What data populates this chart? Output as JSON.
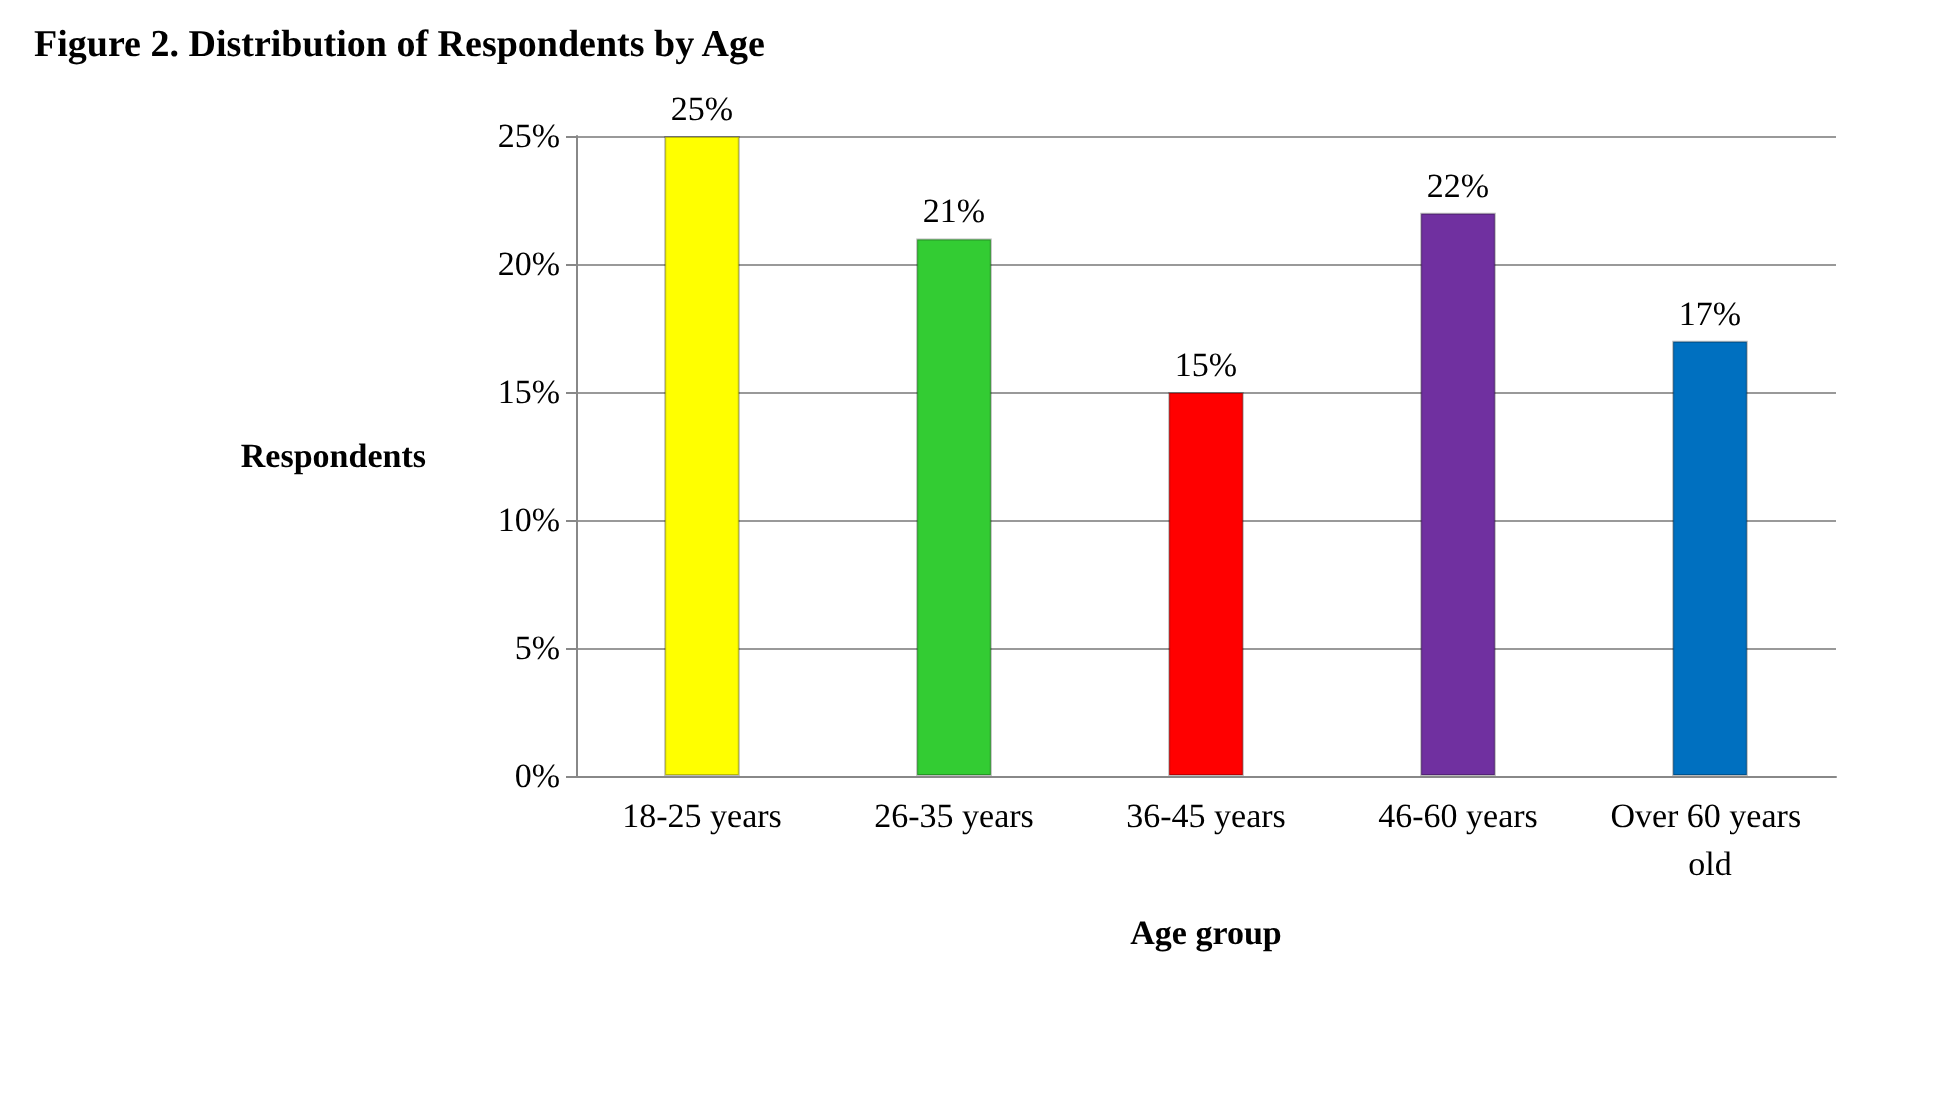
{
  "chart_data": {
    "type": "bar",
    "title": "Figure 2. Distribution of Respondents by Age",
    "xlabel": "Age group",
    "ylabel": "Respondents",
    "categories": [
      "18-25 years",
      "26-35 years",
      "36-45 years",
      "46-60 years",
      "Over 60 years old"
    ],
    "values": [
      25,
      21,
      15,
      22,
      17
    ],
    "colors": [
      "#ffff00",
      "#33cc33",
      "#ff0000",
      "#7030a0",
      "#0070c0"
    ],
    "value_labels": [
      "25%",
      "21%",
      "15%",
      "22%",
      "17%"
    ],
    "ylim": [
      0,
      25
    ],
    "yticks": [
      {
        "value": 0,
        "label": "0%"
      },
      {
        "value": 5,
        "label": "5%"
      },
      {
        "value": 10,
        "label": "10%"
      },
      {
        "value": 15,
        "label": "15%"
      },
      {
        "value": 20,
        "label": "20%"
      },
      {
        "value": 25,
        "label": "25%"
      }
    ],
    "grid": "y"
  }
}
